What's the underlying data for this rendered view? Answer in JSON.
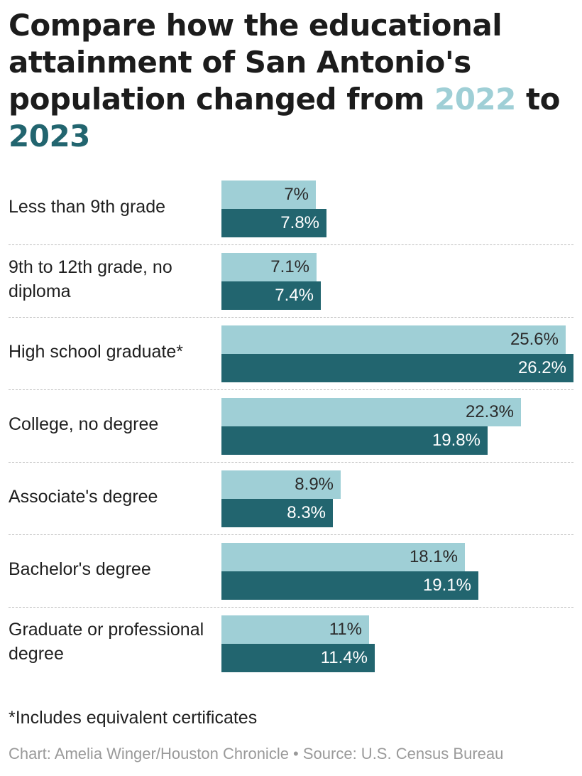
{
  "title": {
    "main": "Compare how the educational attainment of San Antonio's population changed from",
    "year_a": "2022",
    "connector": "to",
    "year_b": "2023"
  },
  "colors": {
    "y2022": "#9fcfd6",
    "y2023": "#22656f"
  },
  "chart_data": {
    "type": "bar",
    "orientation": "horizontal",
    "title": "Compare how the educational attainment of San Antonio's population changed from 2022 to 2023",
    "categories": [
      "Less than 9th grade",
      "9th to 12th grade, no diploma",
      "High school graduate*",
      "College, no degree",
      "Associate's degree",
      "Bachelor's degree",
      "Graduate or professional degree"
    ],
    "series": [
      {
        "name": "2022",
        "values": [
          7,
          7.1,
          25.6,
          22.3,
          8.9,
          18.1,
          11
        ],
        "labels": [
          "7%",
          "7.1%",
          "25.6%",
          "22.3%",
          "8.9%",
          "18.1%",
          "11%"
        ]
      },
      {
        "name": "2023",
        "values": [
          7.8,
          7.4,
          26.2,
          19.8,
          8.3,
          19.1,
          11.4
        ],
        "labels": [
          "7.8%",
          "7.4%",
          "26.2%",
          "19.8%",
          "8.3%",
          "19.1%",
          "11.4%"
        ]
      }
    ],
    "xlabel": "",
    "ylabel": "",
    "xlim": [
      0,
      26.2
    ]
  },
  "footnote": "*Includes equivalent certificates",
  "credit": "Chart: Amelia Winger/Houston Chronicle • Source: U.S. Census Bureau"
}
